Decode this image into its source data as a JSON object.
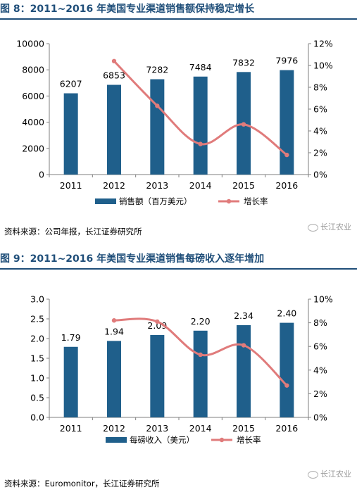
{
  "chart_data": [
    {
      "type": "bar",
      "title": "图 8：2011~2016 年美国专业渠道销售额保持稳定增长",
      "categories": [
        "2011",
        "2012",
        "2013",
        "2014",
        "2015",
        "2016"
      ],
      "series": [
        {
          "name": "销售额（百万美元）",
          "type": "bar",
          "axis": "left",
          "color": "#1f5f8b",
          "values": [
            6207,
            6853,
            7282,
            7484,
            7832,
            7976
          ]
        },
        {
          "name": "增长率",
          "type": "line",
          "axis": "right",
          "color": "#e07b7b",
          "values": [
            null,
            10.4,
            6.3,
            2.8,
            4.6,
            1.8
          ]
        }
      ],
      "data_labels": [
        "6207",
        "6853",
        "7282",
        "7484",
        "7832",
        "7976"
      ],
      "ylim": [
        0,
        10000
      ],
      "yticks": [
        "0",
        "2000",
        "4000",
        "6000",
        "8000",
        "10000"
      ],
      "y2lim": [
        0,
        12
      ],
      "y2ticks": [
        "0%",
        "2%",
        "4%",
        "6%",
        "8%",
        "10%",
        "12%"
      ],
      "legend": "bottom",
      "grid": false,
      "source": "资料来源：公司年报，长江证券研究所",
      "watermark": "长江农业"
    },
    {
      "type": "bar",
      "title": "图 9：2011~2016 年美国专业渠道销售每磅收入逐年增加",
      "categories": [
        "2011",
        "2012",
        "2013",
        "2014",
        "2015",
        "2016"
      ],
      "series": [
        {
          "name": "每磅收入（美元）",
          "type": "bar",
          "axis": "left",
          "color": "#1f5f8b",
          "values": [
            1.79,
            1.94,
            2.09,
            2.2,
            2.34,
            2.4
          ]
        },
        {
          "name": "增长率",
          "type": "line",
          "axis": "right",
          "color": "#e07b7b",
          "values": [
            null,
            8.2,
            8.1,
            5.3,
            6.1,
            2.7
          ]
        }
      ],
      "data_labels": [
        "1.79",
        "1.94",
        "2.09",
        "2.20",
        "2.34",
        "2.40"
      ],
      "ylim": [
        0,
        3
      ],
      "yticks": [
        "0.0",
        "0.5",
        "1.0",
        "1.5",
        "2.0",
        "2.5",
        "3.0"
      ],
      "y2lim": [
        0,
        10
      ],
      "y2ticks": [
        "0%",
        "2%",
        "4%",
        "6%",
        "8%",
        "10%"
      ],
      "legend": "bottom",
      "grid": false,
      "source": "资料来源：Euromonitor，长江证券研究所",
      "watermark": "长江农业"
    }
  ]
}
